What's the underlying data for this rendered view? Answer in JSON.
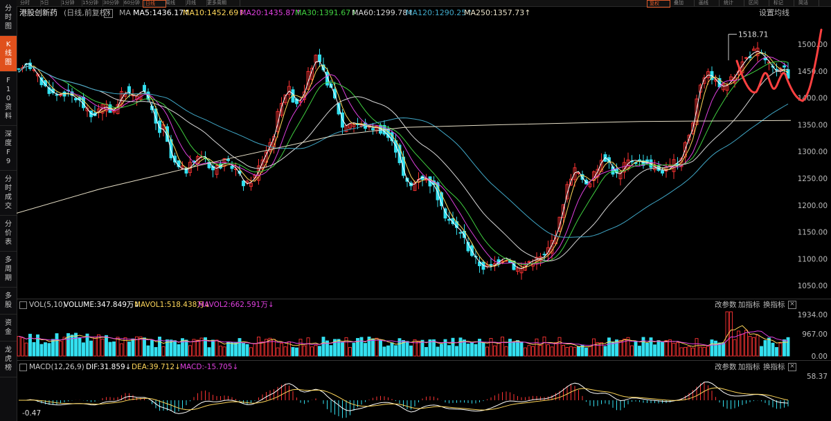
{
  "sidebar": {
    "items": [
      {
        "label": "分时图"
      },
      {
        "label": "K线图",
        "active": true
      },
      {
        "label": "F10资料"
      },
      {
        "label": "深度F9"
      },
      {
        "label": "分时成交"
      },
      {
        "label": "分价表"
      },
      {
        "label": "多周期"
      },
      {
        "label": "多股"
      },
      {
        "label": "资金"
      },
      {
        "label": "龙虎榜"
      }
    ]
  },
  "topbar": {
    "tabs": [
      "分时",
      "5日",
      "1分钟",
      "15分钟",
      "30分钟",
      "60分钟",
      "日线",
      "周线",
      "月线",
      "更多周期"
    ],
    "active_tab": "日线",
    "right_tabs": [
      "复权",
      "叠加",
      "画线",
      "统计",
      "区间",
      "标记",
      "简洁"
    ]
  },
  "header": {
    "stock_name": "港股创新药",
    "mode": "(日线,前复权)",
    "ma_label": "MA",
    "ma5": "MA5:1436.17↑",
    "ma10": "MA10:1452.69↑",
    "ma20": "MA20:1435.87↑",
    "ma30": "MA30:1391.67↑",
    "ma60": "MA60:1299.78↑",
    "ma120": "MA120:1290.25↑",
    "ma250": "MA250:1357.73↑",
    "settings": "设置均线",
    "high_marker": "1518.71"
  },
  "price_axis": [
    "1500.00",
    "1450.00",
    "1400.00",
    "1350.00",
    "1300.00",
    "1250.00",
    "1200.00",
    "1150.00",
    "1100.00",
    "1050.00"
  ],
  "volume": {
    "label": "VOL(5,10)",
    "volume": "VOLUME:347.849万↓",
    "mavol1": "MAVOL1:518.438万↓",
    "mavol2": "MAVOL2:662.591万↓",
    "buttons": [
      "改参数",
      "加指标",
      "换指标"
    ],
    "axis": [
      "1934.00",
      "967.00",
      "0.00"
    ]
  },
  "macd": {
    "label": "MACD(12,26,9)",
    "dif": "DIF:31.859↓",
    "dea": "DEA:39.712↓",
    "macd": "MACD:-15.705↓",
    "buttons": [
      "改参数",
      "加指标",
      "换指标"
    ],
    "axis_top": "58.37",
    "axis_bottom": "-0.47"
  },
  "colors": {
    "up": "#ff3333",
    "down": "#33e0f0",
    "ma5": "#ffffff",
    "ma10": "#ffd75a",
    "ma20": "#e040e0",
    "ma30": "#40d040",
    "ma60": "#d8d8d8",
    "ma120": "#40a8c8",
    "ma250": "#e8e0c8",
    "annotation": "#ff4040"
  }
}
